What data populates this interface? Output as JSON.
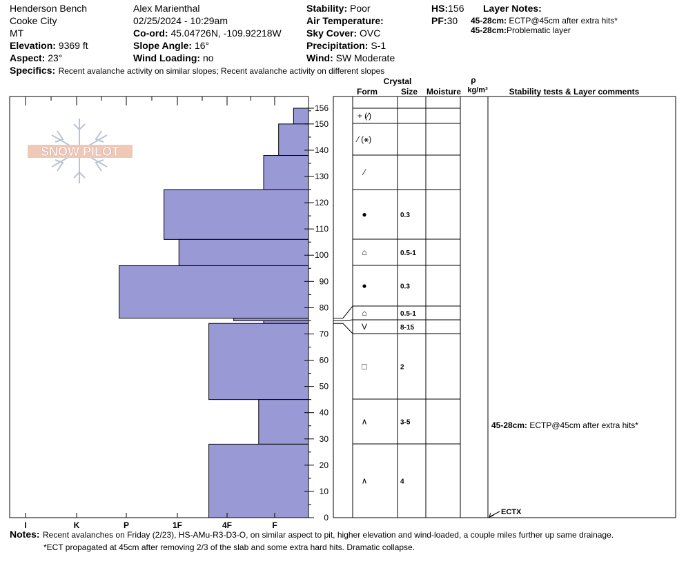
{
  "header": {
    "location": "Henderson Bench",
    "area": "Cooke City",
    "state": "MT",
    "elevation_label": "Elevation:",
    "elevation": "9369 ft",
    "aspect_label": "Aspect:",
    "aspect": "23°",
    "observer": "Alex Marienthal",
    "datetime": "02/25/2024 - 10:29am",
    "coord_label": "Co-ord:",
    "coord": "45.04726N, -109.92218W",
    "slope_label": "Slope Angle:",
    "slope": "16°",
    "wind_loading_label": "Wind Loading:",
    "wind_loading": "no",
    "stability_label": "Stability:",
    "stability": "Poor",
    "air_temp_label": "Air Temperature:",
    "sky_label": "Sky Cover:",
    "sky": "OVC",
    "precip_label": "Precipitation:",
    "precip": "S-1",
    "wind_label": "Wind:",
    "wind": "SW Moderate",
    "hs_label": "HS:",
    "hs": "156",
    "pf_label": "PF:",
    "pf": "30",
    "layer_notes_label": "Layer Notes:",
    "layer_notes": [
      {
        "depth": "45-28cm:",
        "text": "ECTP@45cm after extra hits*"
      },
      {
        "depth": "45-28cm:",
        "text": "Problematic layer"
      }
    ],
    "specifics_label": "Specifics:",
    "specifics": "Recent avalanche activity on similar slopes; Recent avalanche activity on different slopes"
  },
  "logo_text": "SNOW PILOT",
  "table_headers": {
    "crystal": "Crystal",
    "form": "Form",
    "size": "Size",
    "moisture": "Moisture",
    "rho": "ρ",
    "density_unit": "kg/m³",
    "stability": "Stability tests & Layer comments"
  },
  "colors": {
    "hardness_fill": "#9999d6",
    "line": "#000000"
  },
  "chart_data": {
    "type": "bar",
    "orientation": "horizontal",
    "x_ticks": [
      "I",
      "K",
      "P",
      "1F",
      "4F",
      "F"
    ],
    "y_ticks": [
      0,
      10,
      20,
      30,
      40,
      50,
      60,
      70,
      80,
      90,
      100,
      110,
      120,
      130,
      140,
      150,
      156
    ],
    "ylim": [
      0,
      156
    ],
    "layers": [
      {
        "top": 156,
        "bottom": 150,
        "hardness_index": 0.3,
        "form": "+ (⁄)",
        "size": ""
      },
      {
        "top": 150,
        "bottom": 138,
        "hardness_index": 0.6,
        "form": "⁄ (⚹)",
        "size": ""
      },
      {
        "top": 138,
        "bottom": 125,
        "hardness_index": 0.9,
        "form": "⁄",
        "size": ""
      },
      {
        "top": 125,
        "bottom": 106,
        "hardness_index": 2.9,
        "form": "●",
        "size": "0.3"
      },
      {
        "top": 106,
        "bottom": 96,
        "hardness_index": 2.6,
        "form": "⌂",
        "size": "0.5-1"
      },
      {
        "top": 96,
        "bottom": 76,
        "hardness_index": 3.8,
        "form": "●",
        "size": "0.3"
      },
      {
        "top": 76,
        "bottom": 75,
        "hardness_index": 1.5,
        "form": "⌂",
        "size": "0.5-1"
      },
      {
        "top": 75,
        "bottom": 74,
        "hardness_index": 0.9,
        "form": "V",
        "size": "8-15"
      },
      {
        "top": 74,
        "bottom": 45,
        "hardness_index": 2.0,
        "form": "□",
        "size": "2"
      },
      {
        "top": 45,
        "bottom": 28,
        "hardness_index": 1.0,
        "form": "∧",
        "size": "3-5"
      },
      {
        "top": 28,
        "bottom": 0,
        "hardness_index": 2.0,
        "form": "∧",
        "size": "4"
      }
    ],
    "test_comments": [
      {
        "depth": 45,
        "label": "45-28cm:",
        "text": "ECTP@45cm after extra hits*"
      }
    ],
    "test_marker": "ECTX"
  },
  "notes": {
    "label": "Notes:",
    "line1": "Recent avalanches on Friday (2/23), HS-AMu-R3-D3-O, on similar aspect to pit, higher elevation and wind-loaded, a couple miles further up same drainage.",
    "line2": "*ECT propagated at 45cm after removing 2/3 of the slab and some extra hard hits. Dramatic collapse."
  }
}
